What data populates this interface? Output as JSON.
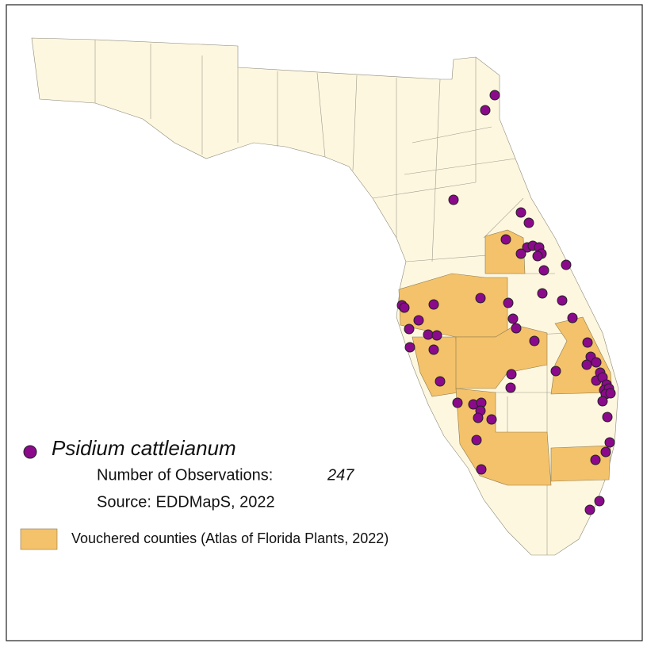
{
  "legend": {
    "species": "Psidium cattleianum",
    "observations_label": "Number of Observations:",
    "observations": 247,
    "source": "Source: EDDMapS, 2022",
    "vouchered": "Vouchered counties (Atlas of Florida Plants, 2022)"
  }
}
